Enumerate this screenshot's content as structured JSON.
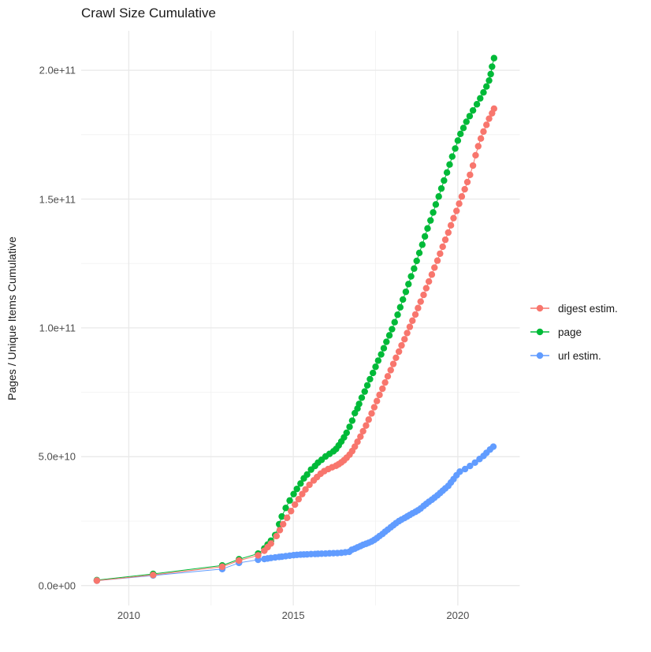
{
  "chart_data": {
    "type": "scatter-line",
    "title": "Crawl Size Cumulative",
    "xlabel": "",
    "ylabel": "Pages / Unique Items Cumulative",
    "value_unit": "pages, values stored in billions (1e9)",
    "xlim": [
      2008.4,
      2021.9
    ],
    "ylim": [
      0,
      215000000000
    ],
    "grid": "on",
    "legend_position": "right",
    "x_ticks": [
      {
        "label": "2010",
        "year": 2010
      },
      {
        "label": "2015",
        "year": 2015
      },
      {
        "label": "2020",
        "year": 2020
      }
    ],
    "x_minor_years": [
      2012.5,
      2017.5
    ],
    "y_ticks": [
      {
        "label": "0.0e+00",
        "value": 0
      },
      {
        "label": "5.0e+10",
        "value": 50
      },
      {
        "label": "1.0e+11",
        "value": 100
      },
      {
        "label": "1.5e+11",
        "value": 150
      },
      {
        "label": "2.0e+11",
        "value": 200
      }
    ],
    "y_minor_values": [
      25,
      75,
      125,
      175
    ],
    "series": [
      {
        "name": "digest estim.",
        "key": "digest-estim",
        "color": "#F8766D",
        "points": [
          [
            2009.03,
            1.9
          ],
          [
            2010.74,
            4.1
          ],
          [
            2012.84,
            7.3
          ],
          [
            2013.35,
            9.7
          ],
          [
            2013.93,
            11.7
          ],
          [
            2014.12,
            13.5
          ],
          [
            2014.22,
            14.9
          ],
          [
            2014.32,
            16.3
          ],
          [
            2014.49,
            19.2
          ],
          [
            2014.59,
            21.5
          ],
          [
            2014.69,
            23.8
          ],
          [
            2014.81,
            26.3
          ],
          [
            2014.93,
            28.9
          ],
          [
            2015.05,
            31.4
          ],
          [
            2015.16,
            33.5
          ],
          [
            2015.27,
            35.5
          ],
          [
            2015.37,
            37.3
          ],
          [
            2015.49,
            39.1
          ],
          [
            2015.62,
            40.8
          ],
          [
            2015.72,
            42.1
          ],
          [
            2015.83,
            43.4
          ],
          [
            2015.94,
            44.4
          ],
          [
            2016.06,
            45.2
          ],
          [
            2016.18,
            45.9
          ],
          [
            2016.3,
            46.5
          ],
          [
            2016.38,
            47.1
          ],
          [
            2016.46,
            47.8
          ],
          [
            2016.54,
            48.6
          ],
          [
            2016.62,
            49.6
          ],
          [
            2016.71,
            50.8
          ],
          [
            2016.79,
            52.2
          ],
          [
            2016.87,
            53.9
          ],
          [
            2016.95,
            55.8
          ],
          [
            2017.04,
            57.8
          ],
          [
            2017.12,
            59.9
          ],
          [
            2017.21,
            62.1
          ],
          [
            2017.29,
            64.4
          ],
          [
            2017.38,
            66.8
          ],
          [
            2017.46,
            69.2
          ],
          [
            2017.54,
            71.6
          ],
          [
            2017.62,
            74.0
          ],
          [
            2017.71,
            76.4
          ],
          [
            2017.79,
            78.8
          ],
          [
            2017.87,
            81.2
          ],
          [
            2017.96,
            83.6
          ],
          [
            2018.04,
            86.0
          ],
          [
            2018.12,
            88.4
          ],
          [
            2018.21,
            90.8
          ],
          [
            2018.29,
            93.2
          ],
          [
            2018.38,
            95.6
          ],
          [
            2018.46,
            98.0
          ],
          [
            2018.54,
            100.4
          ],
          [
            2018.62,
            102.8
          ],
          [
            2018.71,
            105.2
          ],
          [
            2018.79,
            107.7
          ],
          [
            2018.87,
            110.2
          ],
          [
            2018.96,
            112.8
          ],
          [
            2019.04,
            115.4
          ],
          [
            2019.12,
            118.0
          ],
          [
            2019.21,
            120.7
          ],
          [
            2019.29,
            123.4
          ],
          [
            2019.38,
            126.1
          ],
          [
            2019.46,
            128.8
          ],
          [
            2019.54,
            131.5
          ],
          [
            2019.62,
            134.2
          ],
          [
            2019.71,
            137.0
          ],
          [
            2019.79,
            139.8
          ],
          [
            2019.87,
            142.6
          ],
          [
            2019.96,
            145.4
          ],
          [
            2020.04,
            148.2
          ],
          [
            2020.12,
            151.0
          ],
          [
            2020.21,
            153.8
          ],
          [
            2020.29,
            156.6
          ],
          [
            2020.37,
            159.4
          ],
          [
            2020.46,
            163.0
          ],
          [
            2020.54,
            167.0
          ],
          [
            2020.62,
            170.5
          ],
          [
            2020.7,
            173.5
          ],
          [
            2020.78,
            176.2
          ],
          [
            2020.87,
            178.8
          ],
          [
            2020.95,
            181.2
          ],
          [
            2021.04,
            183.3
          ],
          [
            2021.1,
            185.1
          ]
        ]
      },
      {
        "name": "page",
        "key": "page",
        "color": "#00BA38",
        "points": [
          [
            2009.03,
            2.1
          ],
          [
            2010.74,
            4.5
          ],
          [
            2012.84,
            7.8
          ],
          [
            2013.35,
            10.2
          ],
          [
            2013.93,
            12.4
          ],
          [
            2014.12,
            14.4
          ],
          [
            2014.22,
            15.9
          ],
          [
            2014.32,
            17.4
          ],
          [
            2014.45,
            19.6
          ],
          [
            2014.57,
            23.8
          ],
          [
            2014.65,
            26.8
          ],
          [
            2014.77,
            30.1
          ],
          [
            2014.89,
            33.0
          ],
          [
            2015.01,
            35.5
          ],
          [
            2015.11,
            37.5
          ],
          [
            2015.22,
            39.6
          ],
          [
            2015.32,
            41.6
          ],
          [
            2015.42,
            43.1
          ],
          [
            2015.54,
            45.0
          ],
          [
            2015.66,
            46.4
          ],
          [
            2015.75,
            47.7
          ],
          [
            2015.86,
            48.8
          ],
          [
            2015.98,
            50.1
          ],
          [
            2016.1,
            51.1
          ],
          [
            2016.22,
            52.1
          ],
          [
            2016.3,
            53.0
          ],
          [
            2016.38,
            54.4
          ],
          [
            2016.46,
            55.9
          ],
          [
            2016.54,
            57.5
          ],
          [
            2016.62,
            59.3
          ],
          [
            2016.71,
            61.6
          ],
          [
            2016.79,
            64.0
          ],
          [
            2016.87,
            66.9
          ],
          [
            2016.95,
            68.7
          ],
          [
            2017.0,
            70.5
          ],
          [
            2017.08,
            72.9
          ],
          [
            2017.17,
            75.3
          ],
          [
            2017.25,
            77.7
          ],
          [
            2017.33,
            80.1
          ],
          [
            2017.42,
            82.5
          ],
          [
            2017.5,
            84.9
          ],
          [
            2017.58,
            87.3
          ],
          [
            2017.67,
            89.7
          ],
          [
            2017.75,
            92.1
          ],
          [
            2017.83,
            94.6
          ],
          [
            2017.92,
            97.1
          ],
          [
            2018.0,
            99.5
          ],
          [
            2018.08,
            102.2
          ],
          [
            2018.17,
            105.1
          ],
          [
            2018.25,
            108.0
          ],
          [
            2018.33,
            111.0
          ],
          [
            2018.42,
            114.0
          ],
          [
            2018.5,
            117.0
          ],
          [
            2018.58,
            120.0
          ],
          [
            2018.67,
            123.0
          ],
          [
            2018.75,
            126.0
          ],
          [
            2018.83,
            129.1
          ],
          [
            2018.92,
            132.3
          ],
          [
            2019.0,
            135.5
          ],
          [
            2019.08,
            138.6
          ],
          [
            2019.17,
            141.7
          ],
          [
            2019.25,
            144.8
          ],
          [
            2019.33,
            147.9
          ],
          [
            2019.42,
            151.0
          ],
          [
            2019.5,
            154.1
          ],
          [
            2019.58,
            157.2
          ],
          [
            2019.67,
            160.3
          ],
          [
            2019.75,
            163.4
          ],
          [
            2019.83,
            166.5
          ],
          [
            2019.92,
            169.6
          ],
          [
            2020.0,
            172.7
          ],
          [
            2020.08,
            175.3
          ],
          [
            2020.17,
            177.6
          ],
          [
            2020.26,
            180.0
          ],
          [
            2020.36,
            182.2
          ],
          [
            2020.46,
            184.4
          ],
          [
            2020.58,
            186.8
          ],
          [
            2020.68,
            189.1
          ],
          [
            2020.78,
            191.4
          ],
          [
            2020.87,
            193.7
          ],
          [
            2020.95,
            196.0
          ],
          [
            2021.0,
            198.5
          ],
          [
            2021.04,
            201.4
          ],
          [
            2021.1,
            204.7
          ]
        ]
      },
      {
        "name": "url estim.",
        "key": "url-estim",
        "color": "#619CFF",
        "points": [
          [
            2009.03,
            1.9
          ],
          [
            2010.74,
            3.9
          ],
          [
            2012.84,
            6.4
          ],
          [
            2013.35,
            8.8
          ],
          [
            2013.93,
            10.0
          ],
          [
            2014.12,
            10.3
          ],
          [
            2014.22,
            10.5
          ],
          [
            2014.32,
            10.7
          ],
          [
            2014.45,
            10.9
          ],
          [
            2014.57,
            11.1
          ],
          [
            2014.65,
            11.2
          ],
          [
            2014.77,
            11.4
          ],
          [
            2014.89,
            11.6
          ],
          [
            2015.01,
            11.8
          ],
          [
            2015.11,
            11.9
          ],
          [
            2015.22,
            12.0
          ],
          [
            2015.32,
            12.05
          ],
          [
            2015.42,
            12.1
          ],
          [
            2015.54,
            12.2
          ],
          [
            2015.66,
            12.25
          ],
          [
            2015.75,
            12.3
          ],
          [
            2015.86,
            12.35
          ],
          [
            2015.98,
            12.4
          ],
          [
            2016.1,
            12.5
          ],
          [
            2016.22,
            12.55
          ],
          [
            2016.34,
            12.6
          ],
          [
            2016.46,
            12.7
          ],
          [
            2016.58,
            12.9
          ],
          [
            2016.7,
            13.1
          ],
          [
            2016.78,
            13.9
          ],
          [
            2016.87,
            14.3
          ],
          [
            2016.95,
            14.8
          ],
          [
            2017.04,
            15.3
          ],
          [
            2017.12,
            15.8
          ],
          [
            2017.21,
            16.2
          ],
          [
            2017.29,
            16.6
          ],
          [
            2017.38,
            17.1
          ],
          [
            2017.46,
            17.7
          ],
          [
            2017.54,
            18.4
          ],
          [
            2017.62,
            19.2
          ],
          [
            2017.71,
            20.0
          ],
          [
            2017.79,
            20.9
          ],
          [
            2017.87,
            21.7
          ],
          [
            2017.96,
            22.6
          ],
          [
            2018.04,
            23.4
          ],
          [
            2018.12,
            24.2
          ],
          [
            2018.21,
            25.0
          ],
          [
            2018.29,
            25.6
          ],
          [
            2018.38,
            26.2
          ],
          [
            2018.46,
            26.8
          ],
          [
            2018.54,
            27.4
          ],
          [
            2018.62,
            28.0
          ],
          [
            2018.71,
            28.6
          ],
          [
            2018.79,
            29.2
          ],
          [
            2018.87,
            29.9
          ],
          [
            2018.96,
            30.9
          ],
          [
            2019.04,
            31.7
          ],
          [
            2019.12,
            32.5
          ],
          [
            2019.21,
            33.3
          ],
          [
            2019.29,
            34.1
          ],
          [
            2019.38,
            35.0
          ],
          [
            2019.46,
            35.9
          ],
          [
            2019.54,
            36.8
          ],
          [
            2019.62,
            37.7
          ],
          [
            2019.71,
            38.7
          ],
          [
            2019.79,
            40.0
          ],
          [
            2019.87,
            41.3
          ],
          [
            2019.96,
            42.8
          ],
          [
            2020.06,
            44.2
          ],
          [
            2020.22,
            45.2
          ],
          [
            2020.37,
            46.4
          ],
          [
            2020.52,
            47.7
          ],
          [
            2020.66,
            49.1
          ],
          [
            2020.78,
            50.3
          ],
          [
            2020.87,
            51.5
          ],
          [
            2020.98,
            52.8
          ],
          [
            2021.08,
            53.9
          ]
        ]
      }
    ]
  },
  "style": {
    "grid_major_color": "#e9e9e9",
    "grid_minor_color": "#f1f1f1",
    "axis_text_color": "#4d4d4d",
    "text_color": "#1a1a1a",
    "background": "#ffffff"
  }
}
